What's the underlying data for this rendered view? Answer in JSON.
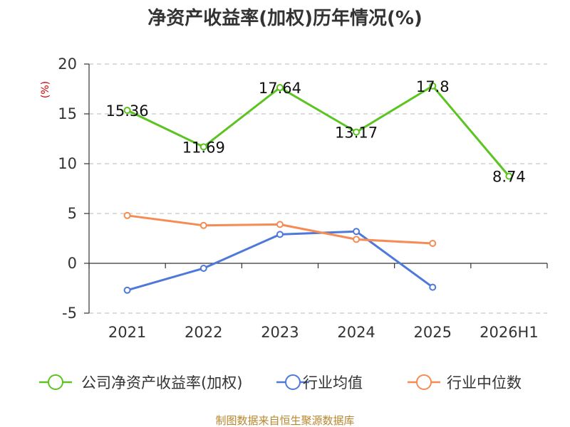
{
  "chart_data": {
    "type": "line",
    "title": "净资产收益率(加权)历年情况(%)",
    "ylabel": "(%)",
    "categories": [
      "2021",
      "2022",
      "2023",
      "2024",
      "2025",
      "2026H1"
    ],
    "ylim": [
      -5,
      20
    ],
    "yticks": [
      20,
      15,
      10,
      5,
      0,
      -5
    ],
    "grid": true,
    "legend_position": "bottom",
    "series": [
      {
        "name": "公司净资产收益率(加权)",
        "color": "#5cc421",
        "values": [
          15.36,
          11.69,
          17.64,
          13.17,
          17.8,
          8.74
        ],
        "labels": [
          "15.36",
          "11.69",
          "17.64",
          "13.17",
          "17.8",
          "8.74"
        ]
      },
      {
        "name": "行业均值",
        "color": "#4e79d9",
        "values": [
          -2.7,
          -0.5,
          2.9,
          3.2,
          -2.4,
          null
        ]
      },
      {
        "name": "行业中位数",
        "color": "#f58b55",
        "values": [
          4.8,
          3.8,
          3.9,
          2.4,
          2.0,
          null
        ]
      }
    ]
  },
  "source": "制图数据来自恒生聚源数据库"
}
